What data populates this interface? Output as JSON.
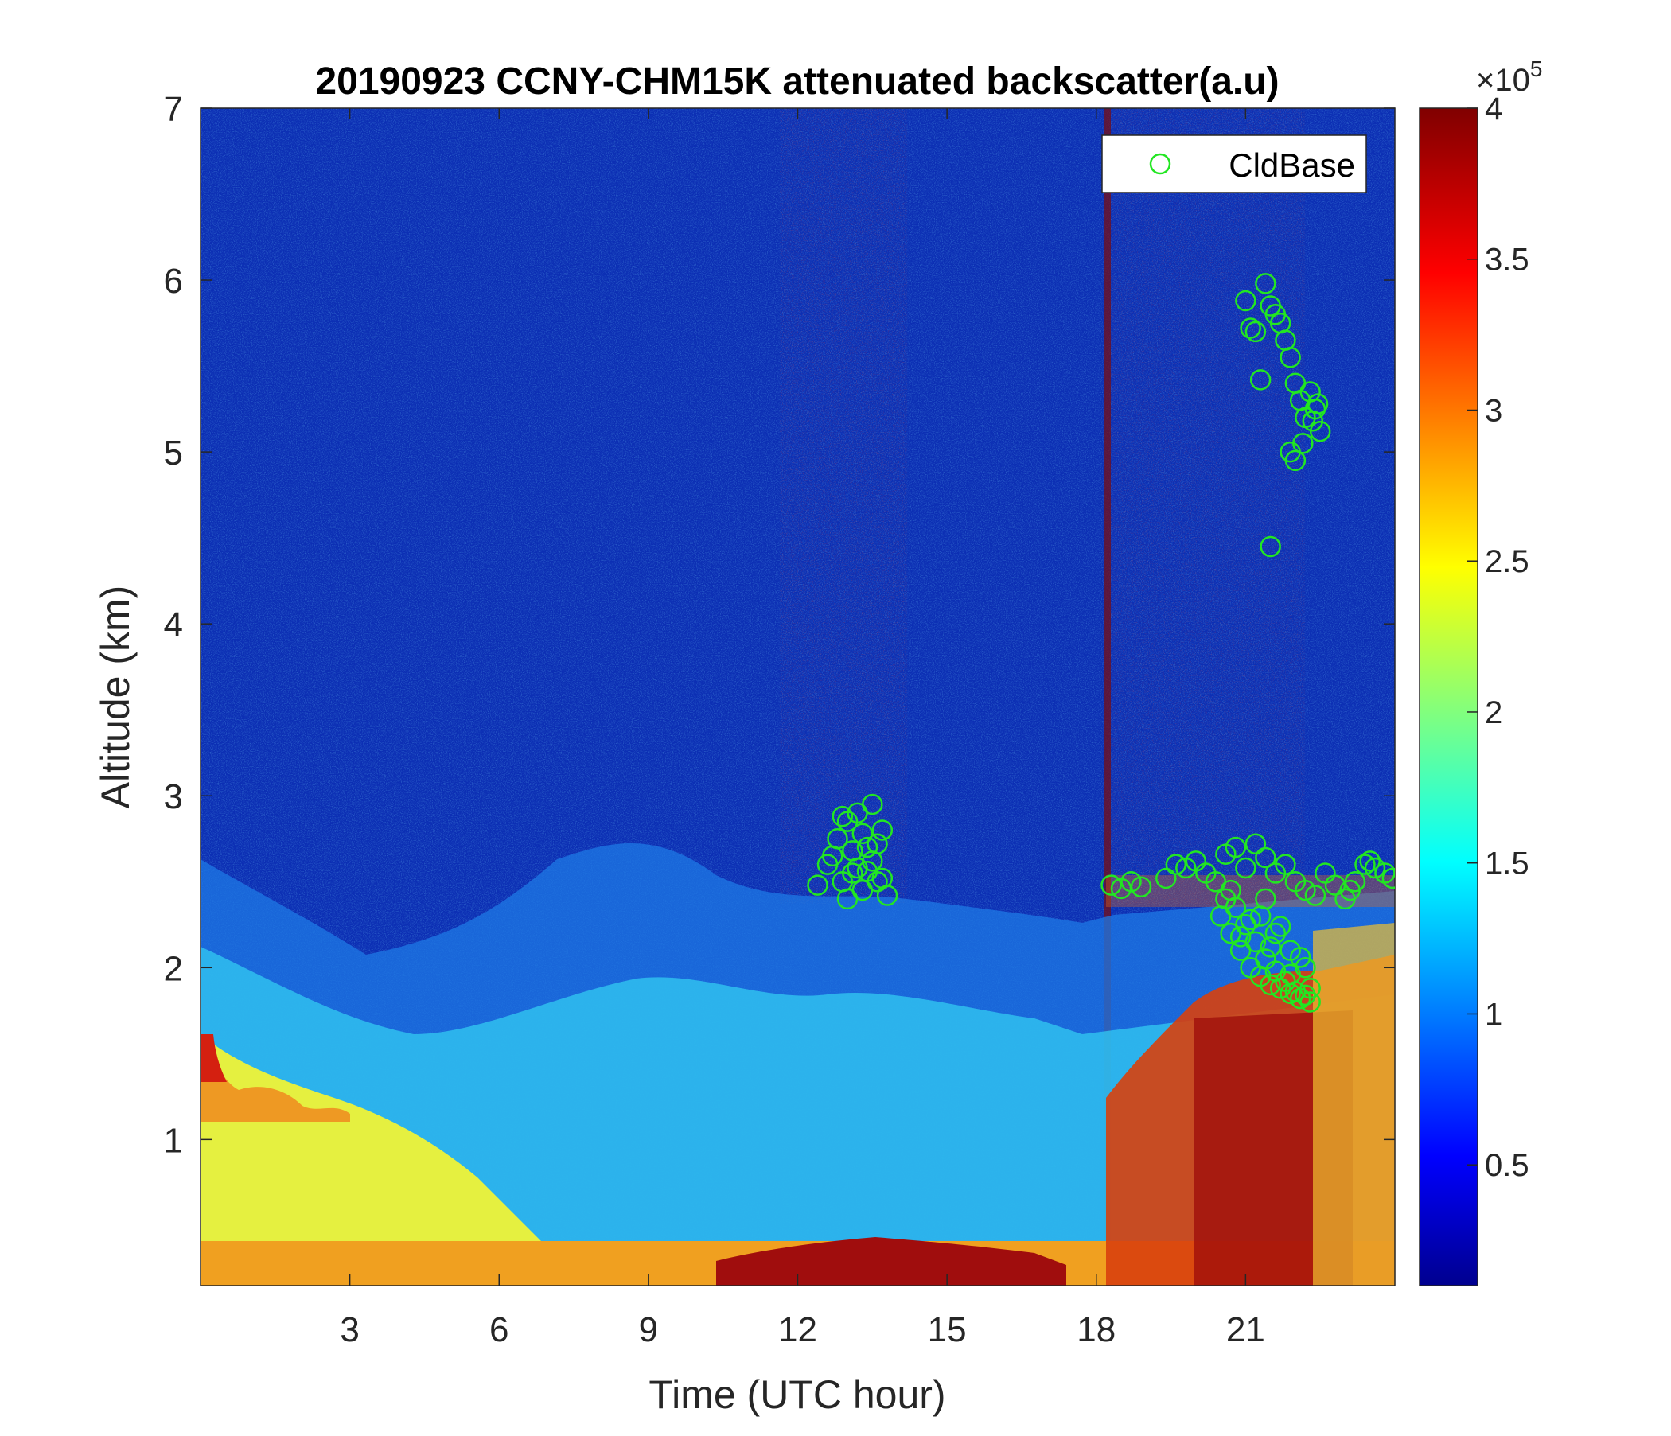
{
  "chart_data": {
    "type": "heatmap",
    "title": "20190923 CCNY-CHM15K attenuated backscatter(a.u)",
    "xlabel": "Time (UTC hour)",
    "ylabel": "Altitude (km)",
    "xlim": [
      0,
      24
    ],
    "ylim": [
      0.15,
      7
    ],
    "xticks": [
      3,
      6,
      9,
      12,
      15,
      18,
      21
    ],
    "yticks": [
      1,
      2,
      3,
      4,
      5,
      6,
      7
    ],
    "colorbar": {
      "colormap": "jet",
      "range": [
        0.1,
        4
      ],
      "ticks": [
        0.5,
        1,
        1.5,
        2,
        2.5,
        3,
        3.5,
        4
      ],
      "tick_labels": [
        "0.5",
        "1",
        "1.5",
        "2",
        "2.5",
        "3",
        "3.5",
        "4"
      ],
      "multiplier_prefix": "×10",
      "multiplier_exponent": "5"
    },
    "legend": {
      "position": "top-right",
      "entries": [
        "CldBase"
      ]
    },
    "series": [
      {
        "name": "CldBase",
        "marker": "circle",
        "color": "#22e622",
        "x": [
          12.4,
          12.6,
          12.8,
          12.9,
          13.0,
          13.1,
          13.2,
          13.3,
          13.4,
          13.5,
          13.6,
          13.7,
          13.8,
          12.7,
          13.0,
          13.2,
          13.5,
          13.7,
          13.3,
          13.1,
          12.9,
          13.6,
          13.4,
          18.3,
          18.5,
          18.7,
          18.9,
          19.4,
          19.6,
          19.8,
          20.0,
          20.2,
          20.4,
          20.6,
          20.8,
          21.0,
          21.2,
          21.4,
          21.6,
          21.8,
          22.0,
          22.2,
          22.4,
          20.5,
          20.7,
          20.9,
          21.1,
          21.3,
          21.5,
          21.7,
          21.9,
          22.1,
          22.3,
          20.6,
          20.8,
          21.0,
          21.2,
          21.4,
          21.6,
          21.8,
          22.0,
          22.2,
          20.7,
          21.1,
          21.5,
          21.9,
          22.3,
          21.3,
          21.6,
          21.9,
          22.2,
          20.9,
          21.4,
          21.7,
          22.1,
          22.6,
          22.8,
          23.0,
          23.2,
          23.4,
          23.6,
          23.8,
          23.95,
          23.1,
          23.5,
          21.0,
          21.2,
          21.4,
          21.5,
          21.6,
          21.7,
          21.8,
          21.9,
          22.0,
          22.1,
          22.2,
          22.3,
          22.4,
          22.5,
          21.3,
          21.9,
          22.0,
          22.15,
          22.35,
          22.45,
          21.1,
          21.5
        ],
        "y": [
          2.48,
          2.6,
          2.75,
          2.5,
          2.85,
          2.55,
          2.9,
          2.45,
          2.7,
          2.95,
          2.5,
          2.8,
          2.42,
          2.65,
          2.4,
          2.58,
          2.62,
          2.52,
          2.78,
          2.68,
          2.88,
          2.72,
          2.56,
          2.48,
          2.46,
          2.5,
          2.47,
          2.52,
          2.6,
          2.58,
          2.62,
          2.55,
          2.5,
          2.66,
          2.7,
          2.58,
          2.72,
          2.64,
          2.55,
          2.6,
          2.5,
          2.45,
          2.42,
          2.3,
          2.2,
          2.1,
          2.0,
          1.95,
          1.9,
          1.88,
          1.85,
          1.82,
          1.8,
          2.4,
          2.35,
          2.25,
          2.15,
          2.05,
          1.98,
          1.92,
          1.86,
          1.84,
          2.45,
          2.28,
          2.12,
          1.96,
          1.88,
          2.3,
          2.2,
          2.1,
          2.0,
          2.18,
          2.4,
          2.24,
          2.06,
          2.55,
          2.48,
          2.4,
          2.5,
          2.6,
          2.58,
          2.55,
          2.52,
          2.45,
          2.62,
          5.88,
          5.7,
          5.98,
          5.85,
          5.8,
          5.75,
          5.65,
          5.55,
          5.4,
          5.3,
          5.2,
          5.35,
          5.25,
          5.12,
          5.42,
          5.0,
          4.95,
          5.05,
          5.18,
          5.28,
          5.72,
          4.45
        ]
      }
    ]
  }
}
